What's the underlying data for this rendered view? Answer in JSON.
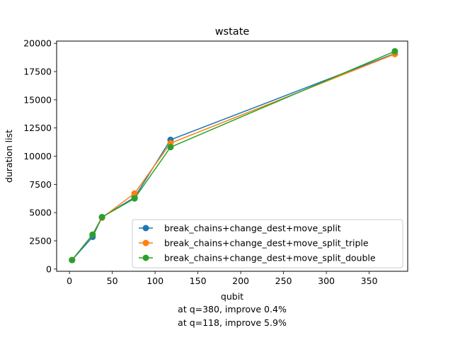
{
  "chart_data": {
    "type": "line",
    "title": "wstate",
    "xlabel": "qubit",
    "ylabel": "duration list",
    "xlim": [
      -15,
      395
    ],
    "ylim": [
      -200,
      20200
    ],
    "xticks": [
      0,
      50,
      100,
      150,
      200,
      250,
      300,
      350
    ],
    "yticks": [
      0,
      2500,
      5000,
      7500,
      10000,
      12500,
      15000,
      17500,
      20000
    ],
    "grid": false,
    "legend_position": "lower-right",
    "series": [
      {
        "name": "break_chains+change_dest+move_split",
        "color": "#1f77b4",
        "x": [
          3,
          27,
          38,
          76,
          118,
          380
        ],
        "y": [
          800,
          2850,
          4600,
          6350,
          11450,
          19100
        ]
      },
      {
        "name": "break_chains+change_dest+move_split_triple",
        "color": "#ff7f0e",
        "x": [
          3,
          27,
          38,
          76,
          118,
          380
        ],
        "y": [
          800,
          3050,
          4550,
          6700,
          11150,
          19050
        ]
      },
      {
        "name": "break_chains+change_dest+move_split_double",
        "color": "#2ca02c",
        "x": [
          3,
          27,
          38,
          76,
          118,
          380
        ],
        "y": [
          800,
          3050,
          4600,
          6250,
          10800,
          19300
        ]
      }
    ],
    "annotations": [
      "at q=380, improve 0.4%",
      "at q=118, improve 5.9%"
    ]
  }
}
